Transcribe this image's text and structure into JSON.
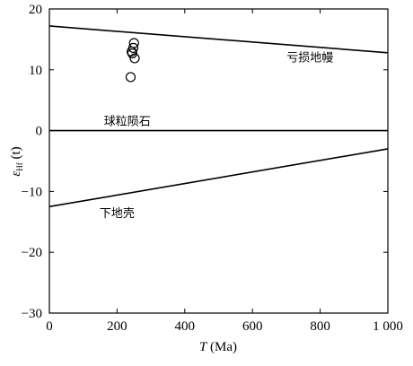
{
  "chart_data": {
    "type": "line",
    "xlabel": {
      "italic": "T",
      "rest": " (Ma)"
    },
    "ylabel": {
      "base": "ε",
      "sub": "Hf",
      "rest": " (t)"
    },
    "xlim": [
      0,
      1000
    ],
    "ylim": [
      -30,
      20
    ],
    "x_ticks": [
      0,
      200,
      400,
      600,
      800,
      1000
    ],
    "x_tick_labels": [
      "0",
      "200",
      "400",
      "600",
      "800",
      "1 000"
    ],
    "y_ticks": [
      -30,
      -20,
      -10,
      0,
      10,
      20
    ],
    "y_tick_labels": [
      "−30",
      "−20",
      "−10",
      "0",
      "10",
      "20"
    ],
    "grid": false,
    "series": [
      {
        "name": "亏损地幔",
        "x": [
          0,
          1000
        ],
        "y": [
          17.2,
          12.8
        ]
      },
      {
        "name": "球粒陨石",
        "x": [
          0,
          1000
        ],
        "y": [
          0,
          0
        ]
      },
      {
        "name": "下地壳",
        "x": [
          0,
          1000
        ],
        "y": [
          -12.5,
          -3.0
        ]
      }
    ],
    "points": [
      {
        "x": 250,
        "y": 14.4
      },
      {
        "x": 248,
        "y": 13.6
      },
      {
        "x": 243,
        "y": 13.0
      },
      {
        "x": 245,
        "y": 12.7
      },
      {
        "x": 252,
        "y": 11.9
      },
      {
        "x": 240,
        "y": 8.8
      }
    ],
    "annotations": [
      {
        "text": "亏损地幔",
        "x": 770,
        "y": 11.4
      },
      {
        "text": "球粒陨石",
        "x": 230,
        "y": 0.9
      },
      {
        "text": "下地壳",
        "x": 200,
        "y": -14.2
      }
    ]
  }
}
